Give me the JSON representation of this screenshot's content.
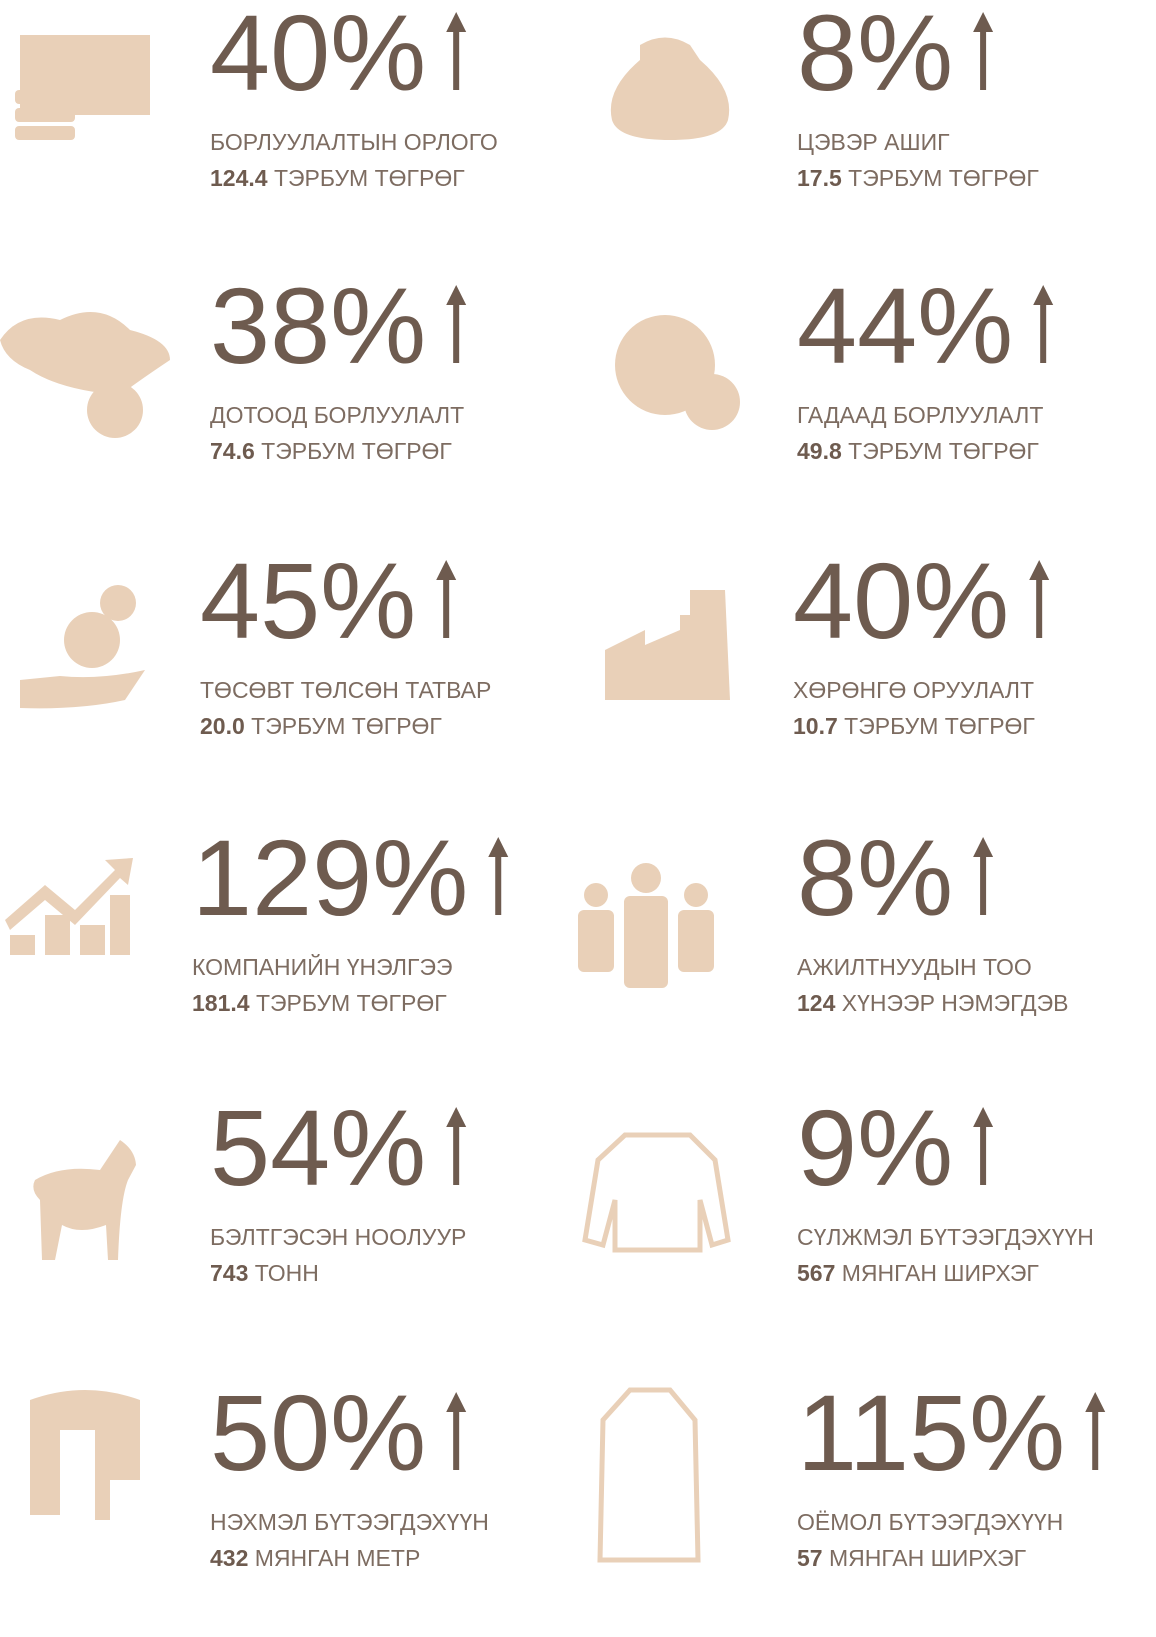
{
  "items": [
    {
      "percent": "40%",
      "label": "БОРЛУУЛАЛТЫН ОРЛОГО",
      "amount": "124.4",
      "unit": "ТЭРБУМ ТӨГРӨГ"
    },
    {
      "percent": "8%",
      "label": "ЦЭВЭР АШИГ",
      "amount": "17.5",
      "unit": "ТЭРБУМ ТӨГРӨГ"
    },
    {
      "percent": "38%",
      "label": "ДОТООД БОРЛУУЛАЛТ",
      "amount": "74.6",
      "unit": "ТЭРБУМ ТӨГРӨГ"
    },
    {
      "percent": "44%",
      "label": "ГАДААД БОРЛУУЛАЛТ",
      "amount": "49.8",
      "unit": "ТЭРБУМ ТӨГРӨГ"
    },
    {
      "percent": "45%",
      "label": "ТӨСӨВТ ТӨЛСӨН ТАТВАР",
      "amount": "20.0",
      "unit": "ТЭРБУМ ТӨГРӨГ"
    },
    {
      "percent": "40%",
      "label": "ХӨРӨНГӨ ОРУУЛАЛТ",
      "amount": "10.7",
      "unit": "ТЭРБУМ ТӨГРӨГ"
    },
    {
      "percent": "129%",
      "label": "КОМПАНИЙН ҮНЭЛГЭЭ",
      "amount": "181.4",
      "unit": "ТЭРБУМ ТӨГРӨГ"
    },
    {
      "percent": "8%",
      "label": "АЖИЛТНУУДЫН ТОО",
      "amount": "124",
      "unit": "ХҮНЭЭР НЭМЭГДЭВ"
    },
    {
      "percent": "54%",
      "label": "БЭЛТГЭСЭН НООЛУУР",
      "amount": "743",
      "unit": "ТОНН"
    },
    {
      "percent": "9%",
      "label": "СҮЛЖМЭЛ БҮТЭЭГДЭХҮҮН",
      "amount": "567",
      "unit": "МЯНГАН ШИРХЭГ"
    },
    {
      "percent": "50%",
      "label": "НЭХМЭЛ БҮТЭЭГДЭХҮҮН",
      "amount": "432",
      "unit": "МЯНГАН МЕТР"
    },
    {
      "percent": "115%",
      "label": "ОЁМОЛ БҮТЭЭГДЭХҮҮН",
      "amount": "57",
      "unit": "МЯНГАН ШИРХЭГ"
    }
  ]
}
